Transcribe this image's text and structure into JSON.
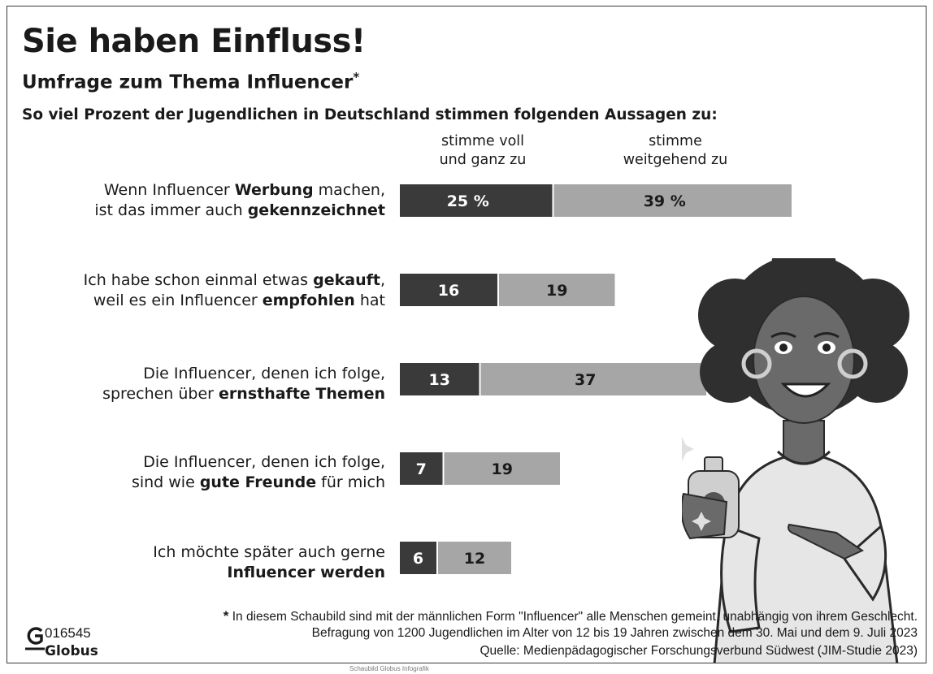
{
  "header": {
    "title": "Sie haben Einfluss!",
    "subtitle": "Umfrage zum Thema Influencer",
    "subtitle_mark": "*",
    "lead": "So viel Prozent der Jugendlichen in Deutschland stimmen folgenden Aussagen zu:"
  },
  "legend": {
    "fully": [
      "stimme voll",
      "und ganz zu"
    ],
    "largely": [
      "stimme",
      "weitgehend zu"
    ]
  },
  "rows": [
    {
      "label_parts": [
        [
          "Wenn Influencer ",
          false
        ],
        [
          "Werbung",
          true
        ],
        [
          " machen,",
          false
        ],
        [
          "|",
          false
        ],
        [
          "ist das immer auch ",
          false
        ],
        [
          "gekennzeichnet",
          true
        ]
      ]
    },
    {
      "label_parts": [
        [
          "Ich habe schon einmal etwas ",
          false
        ],
        [
          "gekauft",
          true
        ],
        [
          ",",
          false
        ],
        [
          "|",
          false
        ],
        [
          "weil es ein Influencer ",
          false
        ],
        [
          "empfohlen",
          true
        ],
        [
          " hat",
          false
        ]
      ]
    },
    {
      "label_parts": [
        [
          "Die Influencer, denen ich folge,",
          false
        ],
        [
          "|",
          false
        ],
        [
          "sprechen über ",
          false
        ],
        [
          "ernsthafte Themen",
          true
        ]
      ]
    },
    {
      "label_parts": [
        [
          "Die Influencer, denen ich folge,",
          false
        ],
        [
          "|",
          false
        ],
        [
          "sind wie ",
          false
        ],
        [
          "gute Freunde",
          true
        ],
        [
          " für mich",
          false
        ]
      ]
    },
    {
      "label_parts": [
        [
          "Ich möchte später auch gerne",
          false
        ],
        [
          "|",
          false
        ],
        [
          "Influencer werden",
          true
        ]
      ]
    }
  ],
  "chart_data": {
    "type": "bar",
    "orientation": "horizontal",
    "stacked": true,
    "unit": "%",
    "categories": [
      "Wenn Influencer Werbung machen, ist das immer auch gekennzeichnet",
      "Ich habe schon einmal etwas gekauft, weil es ein Influencer empfohlen hat",
      "Die Influencer, denen ich folge, sprechen über ernsthafte Themen",
      "Die Influencer, denen ich folge, sind wie gute Freunde für mich",
      "Ich möchte später auch gerne Influencer werden"
    ],
    "series": [
      {
        "name": "stimme voll und ganz zu",
        "values": [
          25,
          16,
          13,
          7,
          6
        ],
        "labels": [
          "25 %",
          "16",
          "13",
          "7",
          "6"
        ],
        "color": "#3a3a3a",
        "label_color": "#ffffff"
      },
      {
        "name": "stimme weitgehend zu",
        "values": [
          39,
          19,
          37,
          19,
          12
        ],
        "labels": [
          "39 %",
          "19",
          "37",
          "19",
          "12"
        ],
        "color": "#a6a6a6",
        "label_color": "#1a1a1a"
      }
    ],
    "grid": false,
    "legend": "top"
  },
  "footnotes": {
    "star": "*",
    "note": " In diesem Schaubild sind mit der männlichen Form \"Influencer\" alle Menschen gemeint, unabhängig von ihrem Geschlecht.",
    "survey": "Befragung von 1200 Jugendlichen im Alter von 12 bis 19 Jahren zwischen dem 30. Mai und dem 9. Juli 2023",
    "source": "Quelle: Medienpädagogischer Forschungsverbund Südwest (JIM-Studie 2023)"
  },
  "logo": {
    "number": "016545",
    "name": "Globus"
  },
  "caption": "Schaubild Globus Infografik"
}
